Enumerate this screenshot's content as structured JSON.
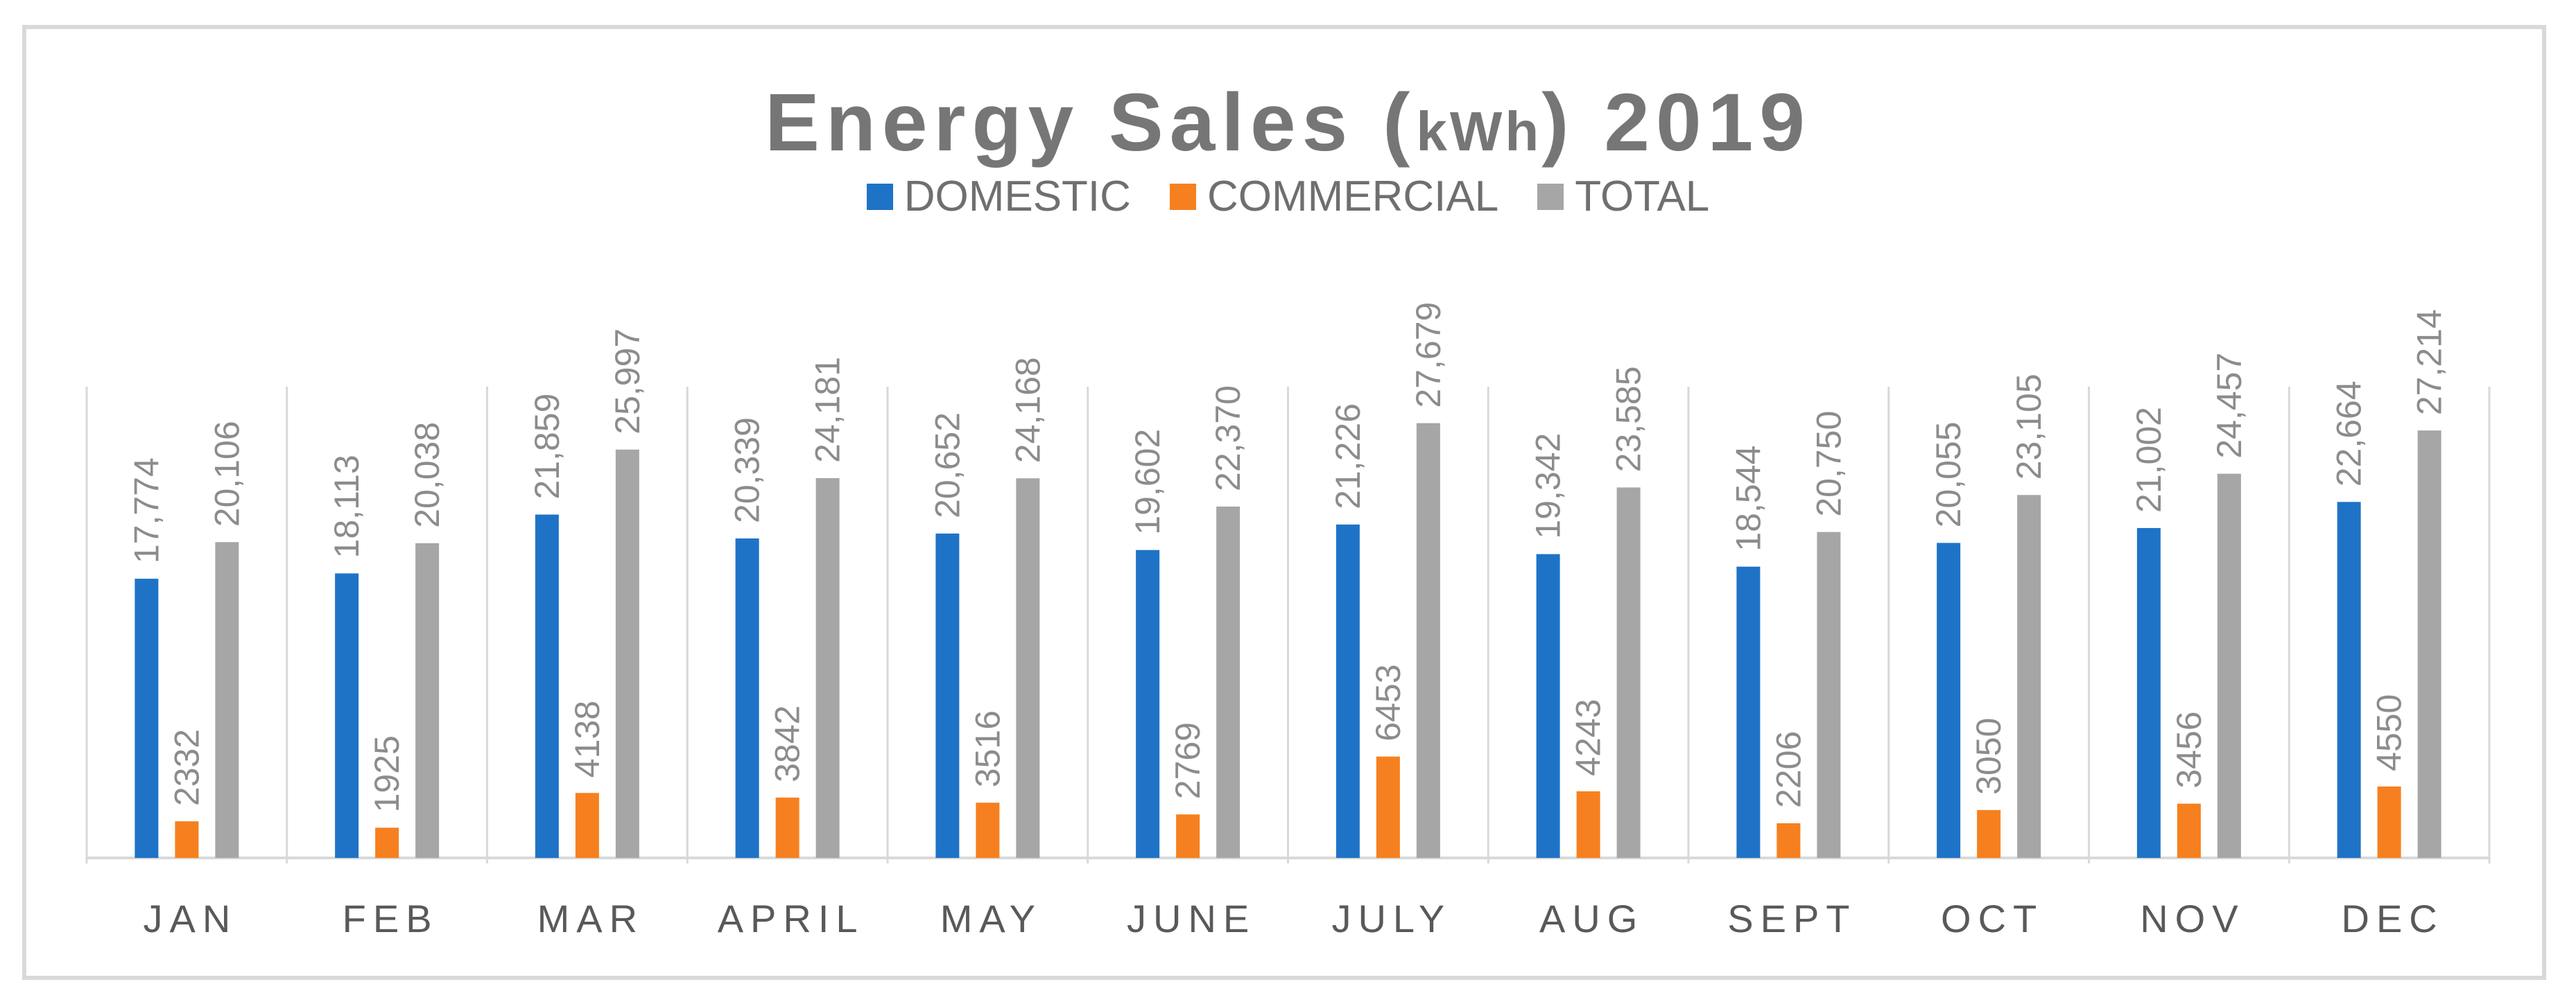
{
  "chart_data": {
    "type": "bar",
    "title": "Energy Sales (",
    "title_unit": "kWh",
    "title_suffix": ") 2019",
    "xlabel": "",
    "ylabel": "",
    "ylim": [
      0,
      30000
    ],
    "grid": false,
    "legend_position": "top",
    "categories": [
      "JAN",
      "FEB",
      "MAR",
      "APRIL",
      "MAY",
      "JUNE",
      "JULY",
      "AUG",
      "SEPT",
      "OCT",
      "NOV",
      "DEC"
    ],
    "series": [
      {
        "name": "DOMESTIC",
        "color": "#1f73c7",
        "values": [
          17774,
          18113,
          21859,
          20339,
          20652,
          19602,
          21226,
          19342,
          18544,
          20055,
          21002,
          22664
        ],
        "labels": [
          "17,774",
          "18,113",
          "21,859",
          "20,339",
          "20,652",
          "19,602",
          "21,226",
          "19,342",
          "18,544",
          "20,055",
          "21,002",
          "22,664"
        ]
      },
      {
        "name": "COMMERCIAL",
        "color": "#f6801f",
        "values": [
          2332,
          1925,
          4138,
          3842,
          3516,
          2769,
          6453,
          4243,
          2206,
          3050,
          3456,
          4550
        ],
        "labels": [
          "2332",
          "1925",
          "4138",
          "3842",
          "3516",
          "2769",
          "6453",
          "4243",
          "2206",
          "3050",
          "3456",
          "4550"
        ]
      },
      {
        "name": "TOTAL",
        "color": "#a6a6a6",
        "values": [
          20106,
          20038,
          25997,
          24181,
          24168,
          22370,
          27679,
          23585,
          20750,
          23105,
          24457,
          27214
        ],
        "labels": [
          "20,106",
          "20,038",
          "25,997",
          "24,181",
          "24,168",
          "22,370",
          "27,679",
          "23,585",
          "20,750",
          "23,105",
          "24,457",
          "27,214"
        ]
      }
    ]
  }
}
